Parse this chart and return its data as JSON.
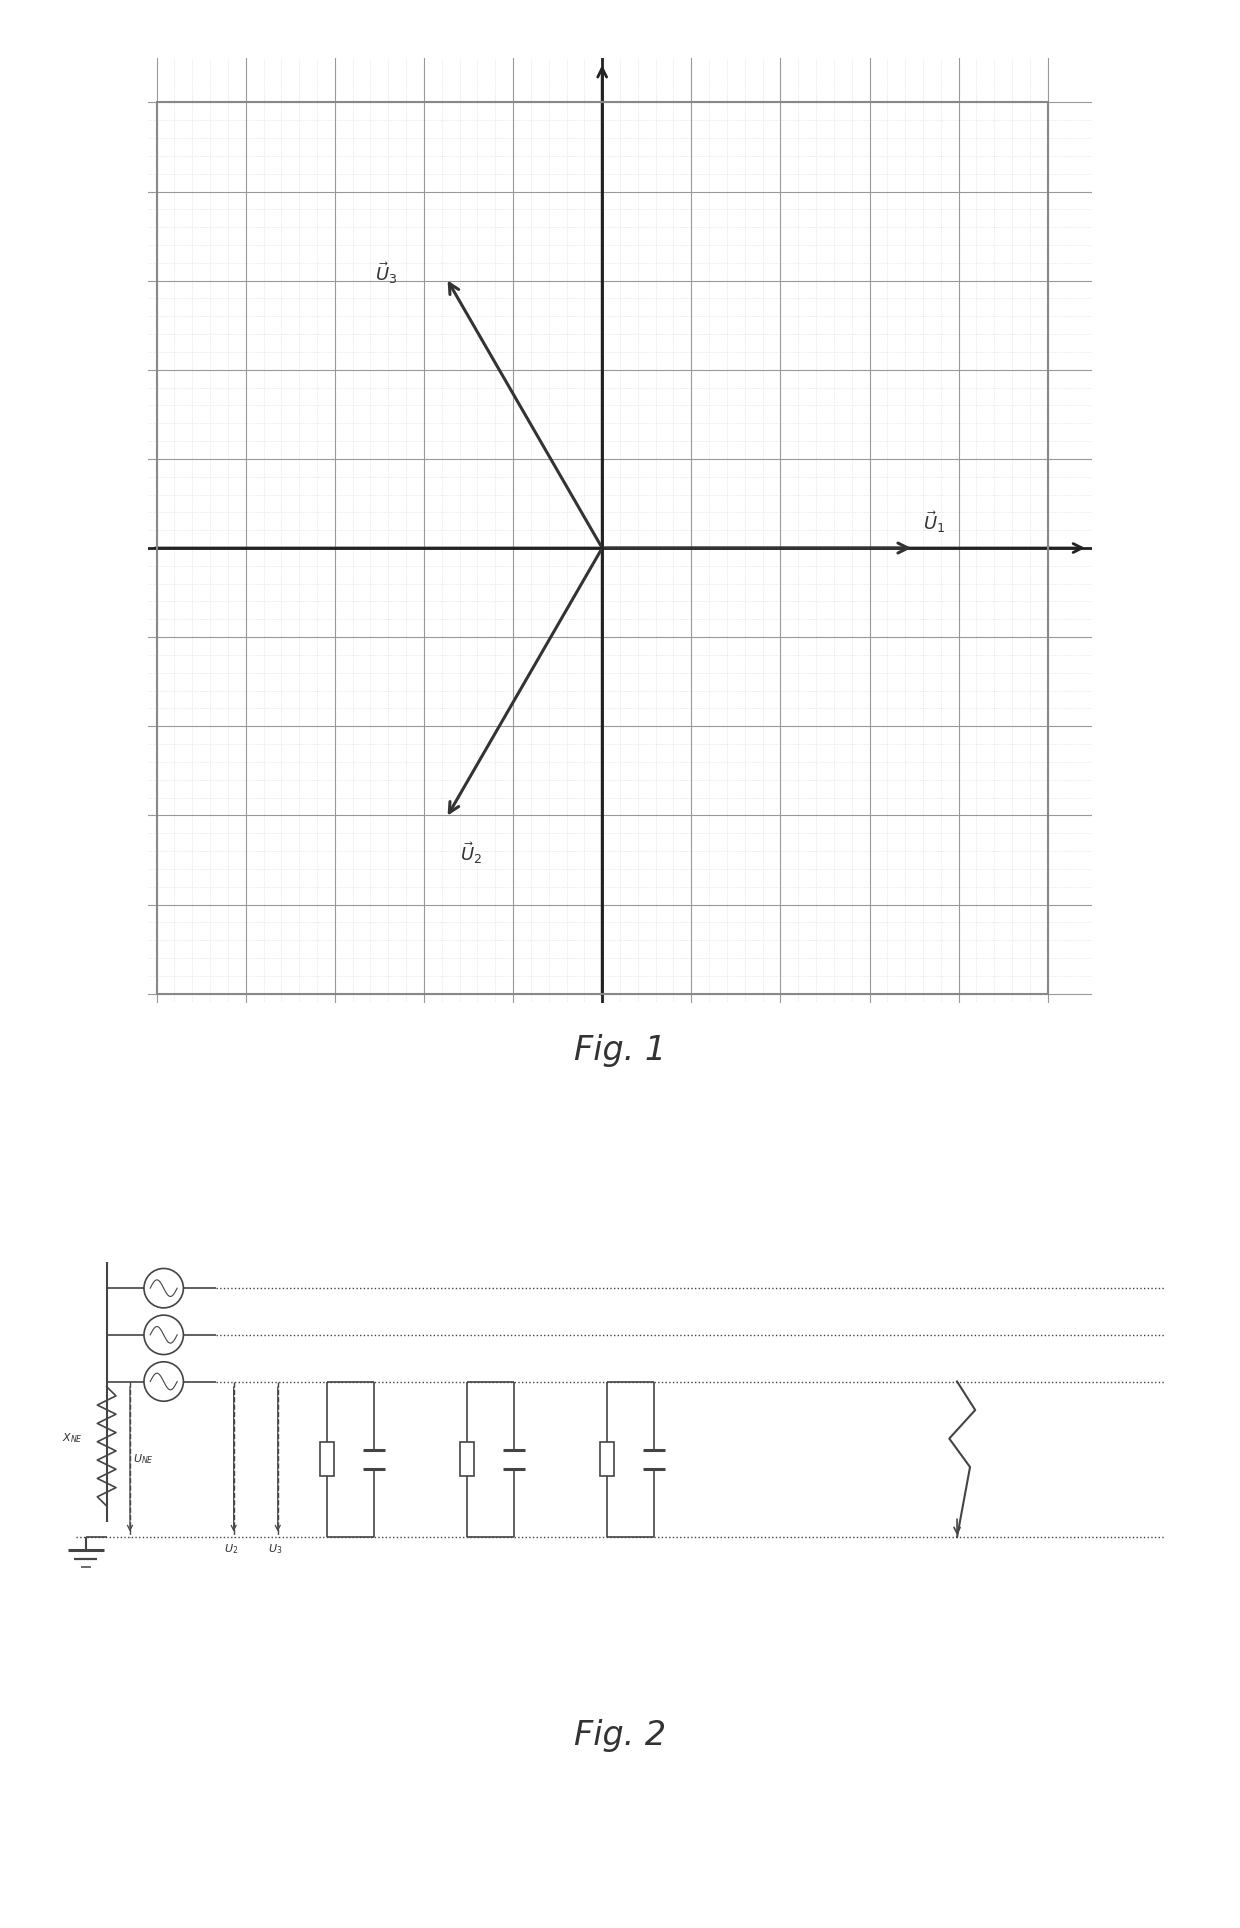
{
  "fig1": {
    "grid_fine_color": "#cccccc",
    "grid_coarse_color": "#999999",
    "bg_color": "#eeeeee",
    "axis_color": "#222222",
    "vector_color": "#333333",
    "border_color": "#888888",
    "xlim": [
      -5,
      5
    ],
    "ylim": [
      -5,
      5
    ],
    "coarse_step": 1.0,
    "fine_step": 0.2,
    "u1_label": "$\\vec{U}_1$",
    "u2_label": "$\\vec{U}_2$",
    "u3_label": "$\\vec{U}_3$",
    "u1_vec": [
      3.5,
      0.0
    ],
    "u2_vec": [
      -1.75,
      -3.03
    ],
    "u3_vec": [
      -1.75,
      3.03
    ]
  },
  "fig2": {
    "line_color": "#444444",
    "lw": 1.3
  },
  "fig1_label": "Fig. 1",
  "fig2_label": "Fig. 2",
  "label_fontsize": 24,
  "bg_color": "#ffffff"
}
